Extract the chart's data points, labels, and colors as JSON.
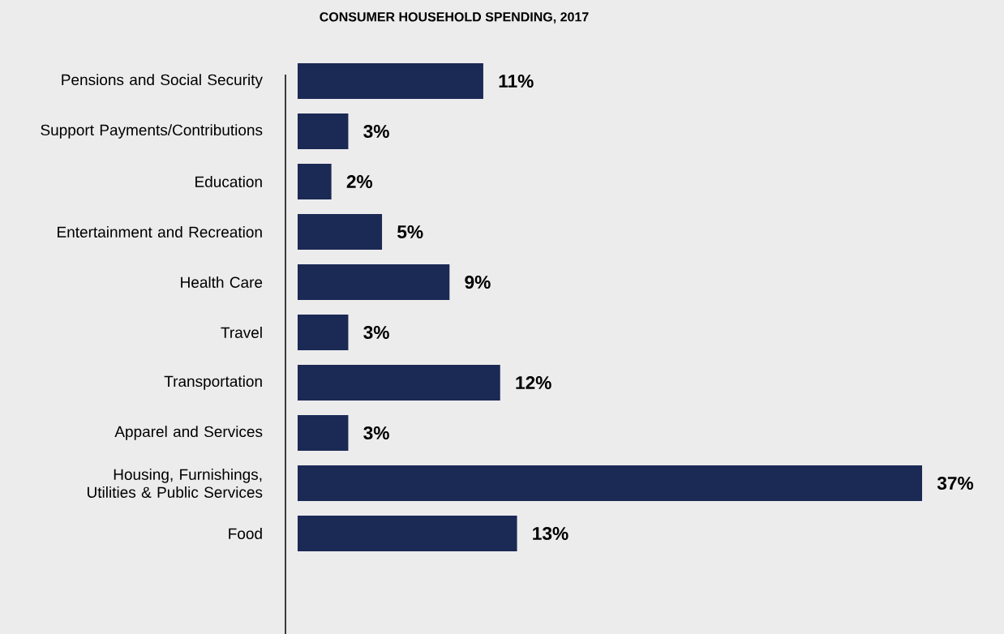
{
  "chart_data": {
    "type": "bar",
    "orientation": "horizontal",
    "title": "CONSUMER HOUSEHOLD SPENDING, 2017",
    "categories": [
      "Pensions and Social Security",
      "Support Payments/Contributions",
      "Education",
      "Entertainment and Recreation",
      "Health Care",
      "Travel",
      "Transportation",
      "Apparel and Services",
      "Housing, Furnishings, Utilities & Public Services",
      "Food"
    ],
    "values": [
      11,
      3,
      2,
      5,
      9,
      3,
      12,
      3,
      37,
      13
    ],
    "value_labels": [
      "11%",
      "3%",
      "2%",
      "5%",
      "9%",
      "3%",
      "12%",
      "3%",
      "37%",
      "13%"
    ],
    "color": "#1b2955",
    "tick_labels": "y"
  }
}
